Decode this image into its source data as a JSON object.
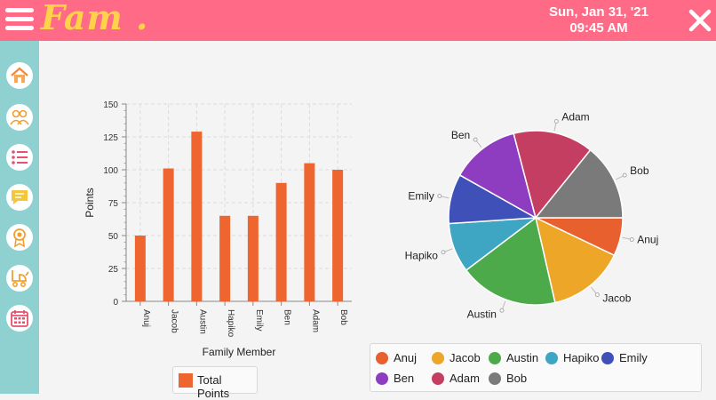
{
  "app": {
    "logo": "Fam .",
    "date": "Sun, Jan 31, '21",
    "time": "09:45 AM"
  },
  "icons": {
    "menu": "menu-icon",
    "close": "close-icon",
    "nav": [
      "home-icon",
      "family-icon",
      "list-icon",
      "chat-icon",
      "award-icon",
      "stroller-icon",
      "calendar-icon"
    ]
  },
  "colors": {
    "header": "#ff6b86",
    "sidebar": "#8fd0d0",
    "logo": "#ffd24a",
    "bar": "#ef6530"
  },
  "chart_data": [
    {
      "type": "bar",
      "categories": [
        "Anuj",
        "Jacob",
        "Austin",
        "Hapiko",
        "Emily",
        "Ben",
        "Adam",
        "Bob"
      ],
      "series": [
        {
          "name": "Total Points",
          "values": [
            50,
            101,
            129,
            65,
            65,
            90,
            105,
            100
          ]
        }
      ],
      "xlabel": "Family Member",
      "ylabel": "Points",
      "ylim": [
        0,
        150
      ],
      "yticks": [
        "0",
        "25",
        "50",
        "75",
        "100",
        "125",
        "150"
      ],
      "grid": true,
      "legend_placement": "bottom"
    },
    {
      "type": "pie",
      "labels": [
        "Anuj",
        "Jacob",
        "Austin",
        "Hapiko",
        "Emily",
        "Ben",
        "Adam",
        "Bob"
      ],
      "values": [
        50,
        101,
        129,
        65,
        65,
        90,
        105,
        100
      ],
      "colors": [
        "#e8602e",
        "#eda627",
        "#4daa4a",
        "#3ea6c3",
        "#3f51b8",
        "#8e3cc0",
        "#c43e62",
        "#7a7a7a"
      ],
      "legend_placement": "bottom"
    }
  ]
}
